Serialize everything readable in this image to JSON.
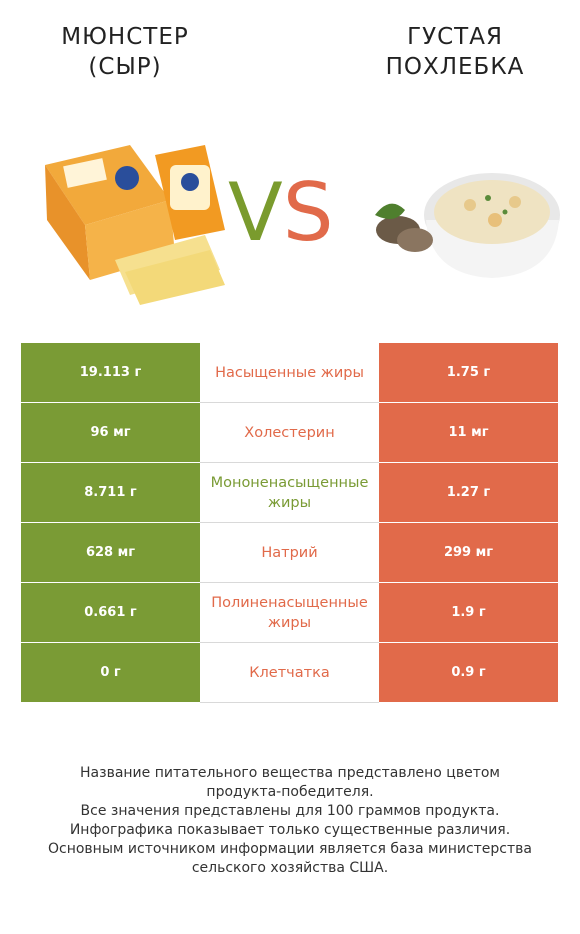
{
  "left_product": {
    "title": "МЮНСТЕР\n(СЫР)",
    "color": "#7a9b35"
  },
  "right_product": {
    "title": "ГУСТАЯ\nПОХЛЕБКА",
    "color": "#e16a4a"
  },
  "vs": {
    "v": "V",
    "s": "S"
  },
  "rows": [
    {
      "nutrient": "Насыщенные жиры",
      "left": "19.113 г",
      "right": "1.75 г",
      "winner": "right"
    },
    {
      "nutrient": "Холестерин",
      "left": "96 мг",
      "right": "11 мг",
      "winner": "right"
    },
    {
      "nutrient": "Мононенасыщенные жиры",
      "left": "8.711 г",
      "right": "1.27 г",
      "winner": "left"
    },
    {
      "nutrient": "Натрий",
      "left": "628 мг",
      "right": "299 мг",
      "winner": "right"
    },
    {
      "nutrient": "Полиненасыщенные жиры",
      "left": "0.661 г",
      "right": "1.9 г",
      "winner": "right"
    },
    {
      "nutrient": "Клетчатка",
      "left": "0 г",
      "right": "0.9 г",
      "winner": "right"
    }
  ],
  "footer": [
    "Название питательного вещества представлено цветом",
    "продукта-победителя.",
    "Все значения представлены для 100 граммов продукта.",
    "Инфографика показывает только существенные различия.",
    "Основным источником информации является база министерства",
    "сельского хозяйства США."
  ]
}
